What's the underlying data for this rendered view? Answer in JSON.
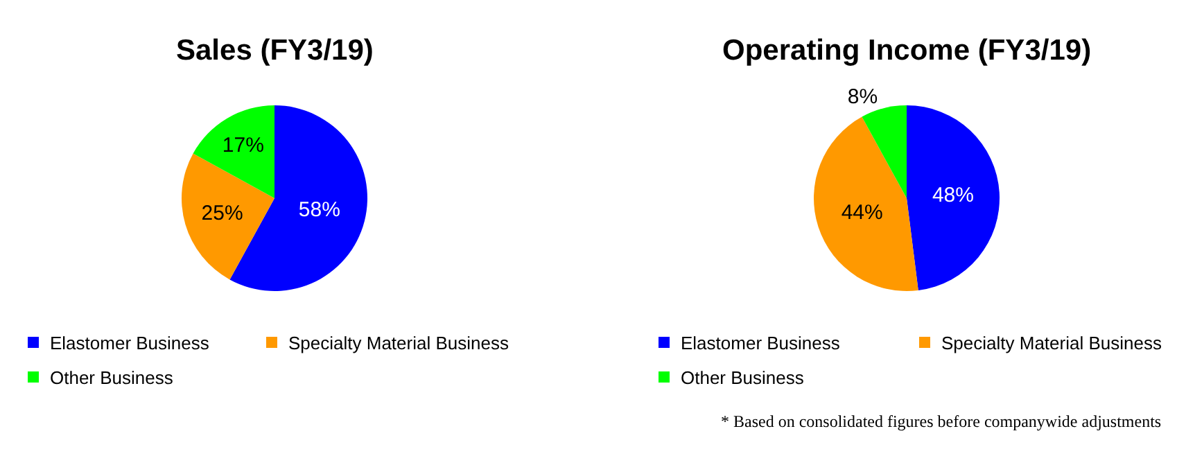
{
  "chart_data": [
    {
      "type": "pie",
      "title": "Sales (FY3/19)",
      "categories": [
        "Elastomer Business",
        "Specialty Material Business",
        "Other Business"
      ],
      "values": [
        58,
        25,
        17
      ],
      "colors": [
        "#0000ff",
        "#ff9900",
        "#00ff00"
      ],
      "value_labels": [
        "58%",
        "25%",
        "17%"
      ],
      "legend": "bottom"
    },
    {
      "type": "pie",
      "title": "Operating Income (FY3/19)",
      "categories": [
        "Elastomer Business",
        "Specialty Material Business",
        "Other Business"
      ],
      "values": [
        48,
        44,
        8
      ],
      "colors": [
        "#0000ff",
        "#ff9900",
        "#00ff00"
      ],
      "value_labels": [
        "48%",
        "44%",
        "8%"
      ],
      "legend": "bottom",
      "annotations": [
        "* Based on consolidated figures before companywide adjustments"
      ]
    }
  ]
}
